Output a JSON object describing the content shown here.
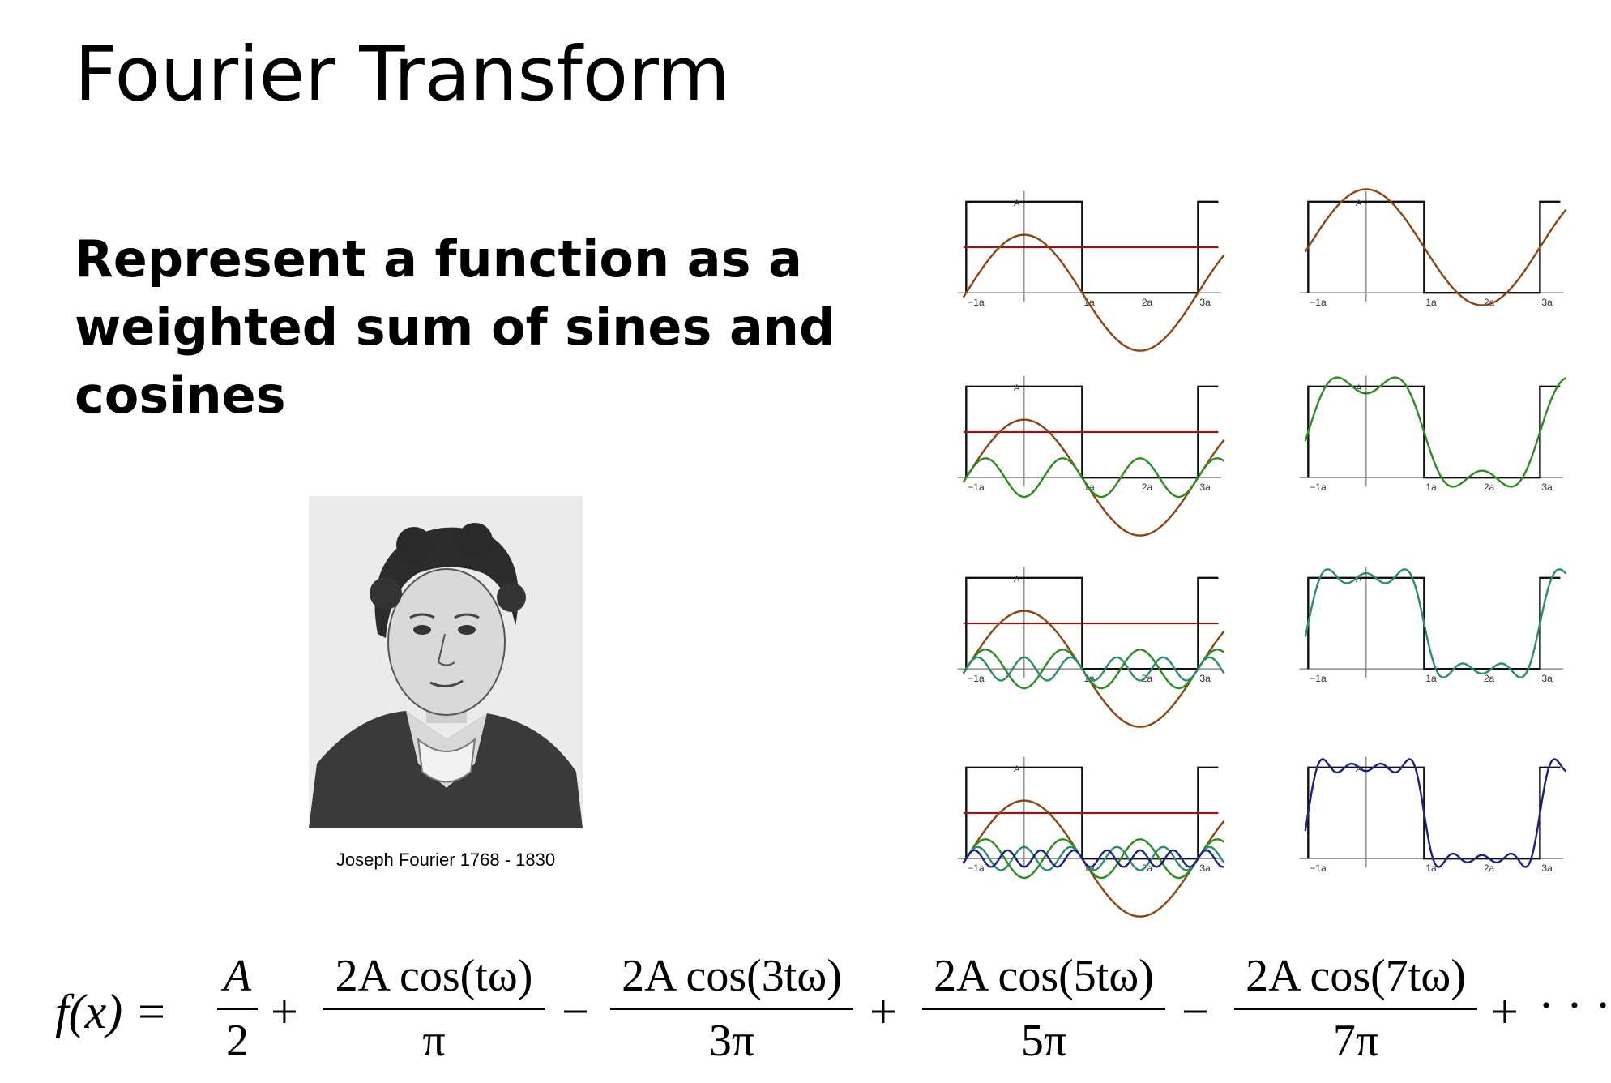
{
  "title": "Fourier Transform",
  "bullet": "Represent a function as a weighted sum of sines and cosines",
  "portrait_caption": "Joseph Fourier 1768 - 1830",
  "plot_labels": {
    "amplitude": "A",
    "ticks": [
      "−1a",
      "1a",
      "2a",
      "3a"
    ]
  },
  "colors": {
    "square": "#111111",
    "dc": "#8b1a1a",
    "h1": "#8b4513",
    "h3": "#2e8b22",
    "h5": "#2f8c6a",
    "h7": "#1a237e"
  },
  "equation": {
    "lhs": "f(x) =",
    "terms": [
      {
        "num": "A",
        "den": "2",
        "op": "+"
      },
      {
        "num": "2A cos(tω)",
        "den": "π",
        "op": "−"
      },
      {
        "num": "2A cos(3tω)",
        "den": "3π",
        "op": "+"
      },
      {
        "num": "2A cos(5tω)",
        "den": "5π",
        "op": "−"
      },
      {
        "num": "2A cos(7tω)",
        "den": "7π",
        "op": "+"
      }
    ],
    "tail": "· · ·"
  }
}
